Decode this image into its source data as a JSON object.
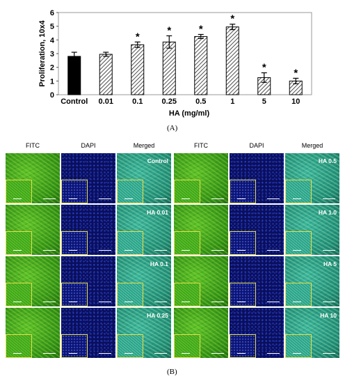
{
  "chart_data": {
    "type": "bar",
    "categories": [
      "Control",
      "0.01",
      "0.1",
      "0.25",
      "0.5",
      "1",
      "5",
      "10"
    ],
    "values": [
      2.8,
      2.95,
      3.65,
      3.85,
      4.25,
      4.95,
      1.25,
      1.0
    ],
    "errors": [
      0.3,
      0.15,
      0.2,
      0.45,
      0.15,
      0.2,
      0.35,
      0.2
    ],
    "significance": [
      "",
      "",
      "*",
      "*",
      "*",
      "*",
      "*",
      "*"
    ],
    "bar_styles": [
      "solid",
      "hatched",
      "hatched",
      "hatched",
      "hatched",
      "hatched",
      "hatched",
      "hatched"
    ],
    "title": "",
    "xlabel": "HA (mg/ml)",
    "ylabel": "Proliferation, 10x4",
    "ylim": [
      0,
      6
    ],
    "yticks": [
      "0",
      "1",
      "2",
      "3",
      "4",
      "5",
      "6"
    ],
    "grid": false
  },
  "panels": {
    "a": "(A)",
    "b": "(B)"
  },
  "micrographs": {
    "column_headers": [
      "FITC",
      "DAPI",
      "Merged",
      "FITC",
      "DAPI",
      "Merged"
    ],
    "left_labels": [
      "Control",
      "HA 0.01",
      "HA 0.1",
      "HA 0.25"
    ],
    "right_labels": [
      "HA 0.5",
      "HA 1.0",
      "HA 5",
      "HA 10"
    ],
    "channels": [
      "fitc",
      "dapi",
      "merged"
    ]
  },
  "colors": {
    "solid_bar": "#000000",
    "hatch": "#222222",
    "inset_border": "#e6e04a",
    "fitc": "#3fa11e",
    "dapi": "#0a0f5c",
    "merged": "#1f8a72"
  }
}
